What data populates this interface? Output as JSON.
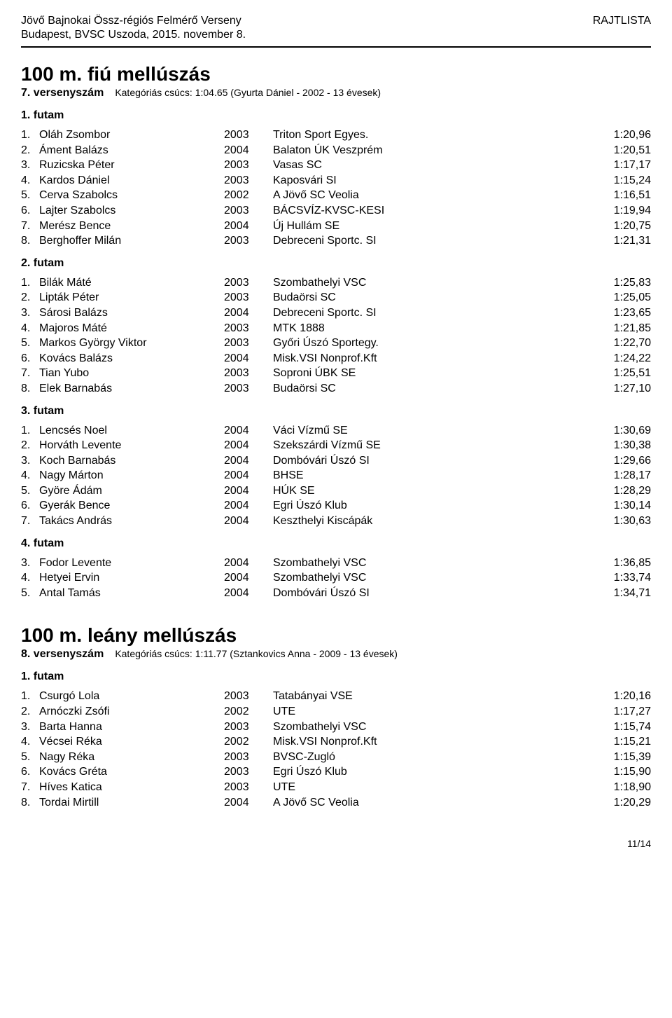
{
  "header": {
    "line1": "Jövő Bajnokai Össz-régiós Felmérő Verseny",
    "line2": "Budapest, BVSC Uszoda, 2015. november 8.",
    "right": "RAJTLISTA"
  },
  "footer": "11/14",
  "events": [
    {
      "title": "100 m. fiú mellúszás",
      "number": "7. versenyszám",
      "record": "Kategóriás csúcs:  1:04.65 (Gyurta Dániel - 2002 - 13 évesek)",
      "heats": [
        {
          "label": "1. futam",
          "rows": [
            {
              "lane": "1.",
              "name": "Oláh Zsombor",
              "year": "2003",
              "club": "Triton Sport Egyes.",
              "time": "1:20,96"
            },
            {
              "lane": "2.",
              "name": "Áment Balázs",
              "year": "2004",
              "club": "Balaton ÚK Veszprém",
              "time": "1:20,51"
            },
            {
              "lane": "3.",
              "name": "Ruzicska Péter",
              "year": "2003",
              "club": "Vasas SC",
              "time": "1:17,17"
            },
            {
              "lane": "4.",
              "name": "Kardos Dániel",
              "year": "2003",
              "club": "Kaposvári SI",
              "time": "1:15,24"
            },
            {
              "lane": "5.",
              "name": "Cerva Szabolcs",
              "year": "2002",
              "club": "A Jövő SC Veolia",
              "time": "1:16,51"
            },
            {
              "lane": "6.",
              "name": "Lajter Szabolcs",
              "year": "2003",
              "club": "BÁCSVÍZ-KVSC-KESI",
              "time": "1:19,94"
            },
            {
              "lane": "7.",
              "name": "Merész Bence",
              "year": "2004",
              "club": "Új Hullám SE",
              "time": "1:20,75"
            },
            {
              "lane": "8.",
              "name": "Berghoffer Milán",
              "year": "2003",
              "club": "Debreceni Sportc. SI",
              "time": "1:21,31"
            }
          ]
        },
        {
          "label": "2. futam",
          "rows": [
            {
              "lane": "1.",
              "name": "Bilák Máté",
              "year": "2003",
              "club": "Szombathelyi VSC",
              "time": "1:25,83"
            },
            {
              "lane": "2.",
              "name": "Lipták Péter",
              "year": "2003",
              "club": "Budaörsi SC",
              "time": "1:25,05"
            },
            {
              "lane": "3.",
              "name": "Sárosi Balázs",
              "year": "2004",
              "club": "Debreceni Sportc. SI",
              "time": "1:23,65"
            },
            {
              "lane": "4.",
              "name": "Majoros Máté",
              "year": "2003",
              "club": "MTK 1888",
              "time": "1:21,85"
            },
            {
              "lane": "5.",
              "name": "Markos György Viktor",
              "year": "2003",
              "club": "Győri Úszó Sportegy.",
              "time": "1:22,70"
            },
            {
              "lane": "6.",
              "name": "Kovács Balázs",
              "year": "2004",
              "club": "Misk.VSI Nonprof.Kft",
              "time": "1:24,22"
            },
            {
              "lane": "7.",
              "name": "Tian Yubo",
              "year": "2003",
              "club": "Soproni ÚBK SE",
              "time": "1:25,51"
            },
            {
              "lane": "8.",
              "name": "Elek Barnabás",
              "year": "2003",
              "club": "Budaörsi SC",
              "time": "1:27,10"
            }
          ]
        },
        {
          "label": "3. futam",
          "rows": [
            {
              "lane": "1.",
              "name": "Lencsés Noel",
              "year": "2004",
              "club": "Váci Vízmű SE",
              "time": "1:30,69"
            },
            {
              "lane": "2.",
              "name": "Horváth Levente",
              "year": "2004",
              "club": "Szekszárdi Vízmű SE",
              "time": "1:30,38"
            },
            {
              "lane": "3.",
              "name": "Koch Barnabás",
              "year": "2004",
              "club": "Dombóvári Úszó SI",
              "time": "1:29,66"
            },
            {
              "lane": "4.",
              "name": "Nagy Márton",
              "year": "2004",
              "club": "BHSE",
              "time": "1:28,17"
            },
            {
              "lane": "5.",
              "name": "Györe Ádám",
              "year": "2004",
              "club": "HÚK SE",
              "time": "1:28,29"
            },
            {
              "lane": "6.",
              "name": "Gyerák Bence",
              "year": "2004",
              "club": "Egri Úszó Klub",
              "time": "1:30,14"
            },
            {
              "lane": "7.",
              "name": "Takács András",
              "year": "2004",
              "club": "Keszthelyi Kiscápák",
              "time": "1:30,63"
            }
          ]
        },
        {
          "label": "4. futam",
          "rows": [
            {
              "lane": "3.",
              "name": "Fodor Levente",
              "year": "2004",
              "club": "Szombathelyi VSC",
              "time": "1:36,85"
            },
            {
              "lane": "4.",
              "name": "Hetyei Ervin",
              "year": "2004",
              "club": "Szombathelyi VSC",
              "time": "1:33,74"
            },
            {
              "lane": "5.",
              "name": "Antal Tamás",
              "year": "2004",
              "club": "Dombóvári Úszó SI",
              "time": "1:34,71"
            }
          ]
        }
      ]
    },
    {
      "title": "100 m. leány mellúszás",
      "number": "8. versenyszám",
      "record": "Kategóriás csúcs:  1:11.77 (Sztankovics Anna - 2009 - 13 évesek)",
      "heats": [
        {
          "label": "1. futam",
          "rows": [
            {
              "lane": "1.",
              "name": "Csurgó Lola",
              "year": "2003",
              "club": "Tatabányai VSE",
              "time": "1:20,16"
            },
            {
              "lane": "2.",
              "name": "Arnóczki Zsófi",
              "year": "2002",
              "club": "UTE",
              "time": "1:17,27"
            },
            {
              "lane": "3.",
              "name": "Barta Hanna",
              "year": "2003",
              "club": "Szombathelyi VSC",
              "time": "1:15,74"
            },
            {
              "lane": "4.",
              "name": "Vécsei Réka",
              "year": "2002",
              "club": "Misk.VSI Nonprof.Kft",
              "time": "1:15,21"
            },
            {
              "lane": "5.",
              "name": "Nagy Réka",
              "year": "2003",
              "club": "BVSC-Zugló",
              "time": "1:15,39"
            },
            {
              "lane": "6.",
              "name": "Kovács Gréta",
              "year": "2003",
              "club": "Egri Úszó Klub",
              "time": "1:15,90"
            },
            {
              "lane": "7.",
              "name": "Híves Katica",
              "year": "2003",
              "club": "UTE",
              "time": "1:18,90"
            },
            {
              "lane": "8.",
              "name": "Tordai Mirtill",
              "year": "2004",
              "club": "A Jövő SC Veolia",
              "time": "1:20,29"
            }
          ]
        }
      ]
    }
  ]
}
